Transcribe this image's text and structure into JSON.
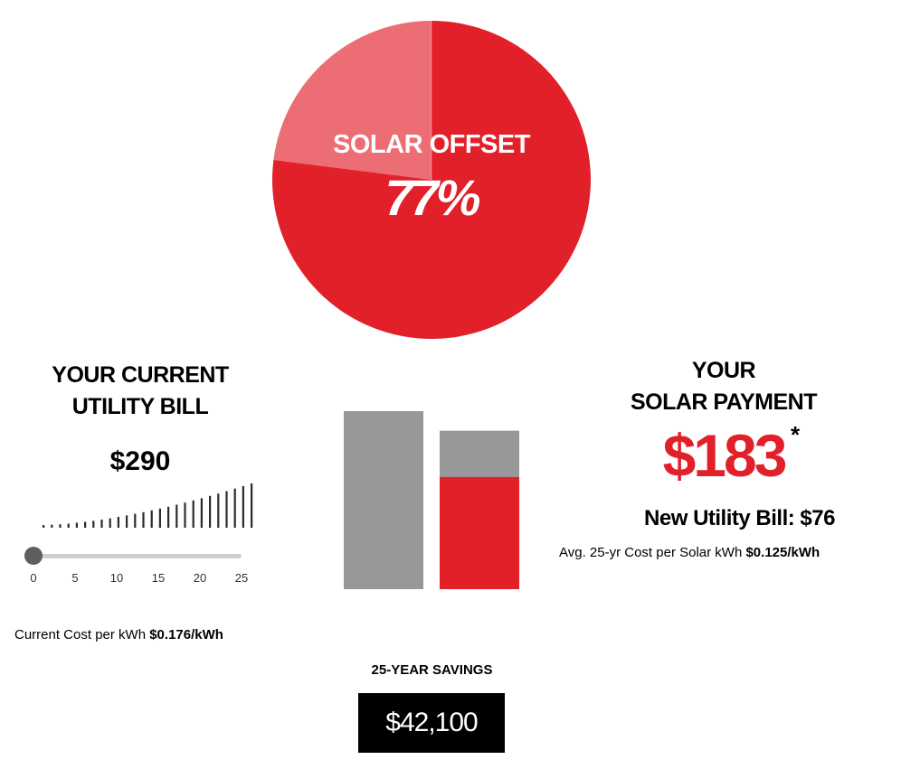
{
  "solar_offset": {
    "title": "SOLAR OFFSET",
    "value_label": "77%",
    "percent": 77,
    "colors": {
      "main": "#e2202a",
      "remainder": "#ec6e74"
    }
  },
  "current_bill": {
    "heading_line1": "YOUR CURRENT",
    "heading_line2": "UTILITY BILL",
    "amount": "$290",
    "slider": {
      "min": 0,
      "max": 25,
      "value": 0,
      "tick_labels": [
        "0",
        "5",
        "10",
        "15",
        "20",
        "25"
      ]
    },
    "cost_label": "Current Cost per kWh",
    "cost_value": "$0.176/kWh"
  },
  "comparison_bars": {
    "colors": {
      "gray": "#97989a",
      "red": "#e2202a"
    },
    "current_bill_level": 1.0,
    "solar_total_level": 0.89,
    "solar_red_level": 0.63
  },
  "savings": {
    "label": "25-YEAR SAVINGS",
    "amount": "$42,100"
  },
  "solar_payment": {
    "heading_line1": "YOUR",
    "heading_line2": "SOLAR PAYMENT",
    "amount": "$183",
    "asterisk": "*",
    "new_bill_label": "New Utility Bill:",
    "new_bill_value": "$76",
    "cost_label": "Avg. 25-yr Cost per Solar kWh",
    "cost_value": "$0.125/kWh"
  }
}
